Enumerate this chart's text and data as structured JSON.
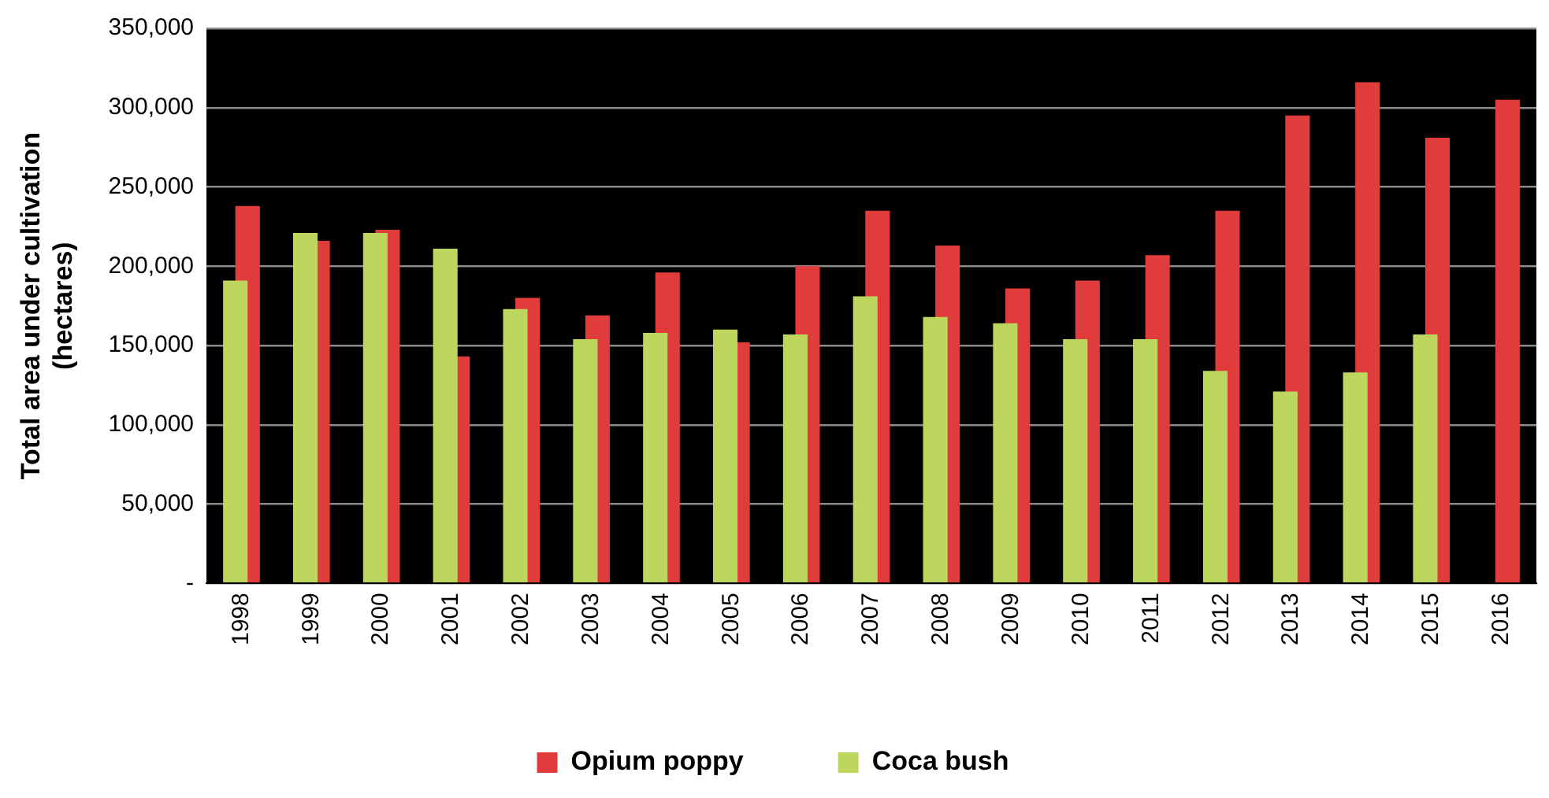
{
  "chart_data": {
    "type": "bar",
    "ylabel": "Total area under cultivation\n(hectares)",
    "categories": [
      "1998",
      "1999",
      "2000",
      "2001",
      "2002",
      "2003",
      "2004",
      "2005",
      "2006",
      "2007",
      "2008",
      "2009",
      "2010",
      "2011",
      "2012",
      "2013",
      "2014",
      "2015",
      "2016"
    ],
    "series": [
      {
        "name": "Opium poppy",
        "color": "#e03c3c",
        "values": [
          238000,
          216000,
          223000,
          143000,
          180000,
          169000,
          196000,
          152000,
          200000,
          235000,
          213000,
          186000,
          191000,
          207000,
          235000,
          295000,
          316000,
          281000,
          305000
        ]
      },
      {
        "name": "Coca bush",
        "color": "#bcd65e",
        "values": [
          191000,
          221000,
          221000,
          211000,
          173000,
          154000,
          158000,
          160000,
          157000,
          181000,
          168000,
          164000,
          154000,
          154000,
          134000,
          121000,
          133000,
          157000,
          null
        ]
      }
    ],
    "ylim": [
      0,
      350000
    ],
    "yticks": [
      {
        "value": 0,
        "label": "-"
      },
      {
        "value": 50000,
        "label": "50,000"
      },
      {
        "value": 100000,
        "label": "100,000"
      },
      {
        "value": 150000,
        "label": "150,000"
      },
      {
        "value": 200000,
        "label": "200,000"
      },
      {
        "value": 250000,
        "label": "250,000"
      },
      {
        "value": 300000,
        "label": "300,000"
      },
      {
        "value": 350000,
        "label": "350,000"
      }
    ],
    "grid": "y",
    "legend": "bottom"
  }
}
